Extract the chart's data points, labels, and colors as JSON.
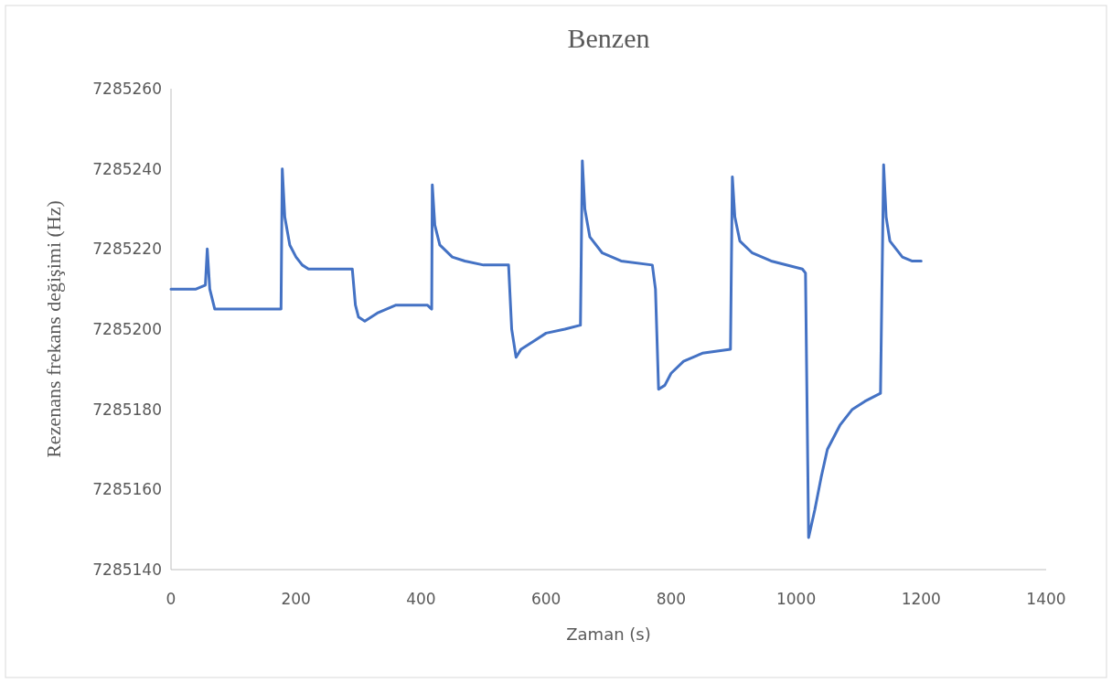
{
  "chart_data": {
    "type": "line",
    "title": "Benzen",
    "xlabel": "Zaman (s)",
    "ylabel": "Rezenans frekans değişimi (Hz)",
    "xlim": [
      0,
      1400
    ],
    "xticks": [
      0,
      200,
      400,
      600,
      800,
      1000,
      1200,
      1400
    ],
    "ylim": [
      7285140,
      7285260
    ],
    "yticks": [
      7285140,
      7285160,
      7285180,
      7285200,
      7285220,
      7285240,
      7285260
    ],
    "grid": false,
    "marker": "none",
    "line_style": "solid",
    "series": [
      {
        "color": "#4472c4",
        "x": [
          0,
          20,
          40,
          55,
          58,
          62,
          70,
          100,
          150,
          176,
          178,
          182,
          190,
          200,
          210,
          220,
          290,
          295,
          300,
          310,
          330,
          360,
          380,
          410,
          417,
          418,
          422,
          430,
          450,
          470,
          500,
          540,
          545,
          552,
          560,
          580,
          600,
          630,
          655,
          658,
          662,
          670,
          690,
          720,
          770,
          775,
          780,
          790,
          800,
          820,
          850,
          895,
          898,
          902,
          910,
          930,
          960,
          1010,
          1015,
          1020,
          1030,
          1040,
          1050,
          1070,
          1090,
          1110,
          1135,
          1140,
          1144,
          1150,
          1170,
          1185,
          1200
        ],
        "values": [
          7285210,
          7285210,
          7285210,
          7285211,
          7285220,
          7285210,
          7285205,
          7285205,
          7285205,
          7285205,
          7285240,
          7285228,
          7285221,
          7285218,
          7285216,
          7285215,
          7285215,
          7285206,
          7285203,
          7285202,
          7285204,
          7285206,
          7285206,
          7285206,
          7285205,
          7285236,
          7285226,
          7285221,
          7285218,
          7285217,
          7285216,
          7285216,
          7285200,
          7285193,
          7285195,
          7285197,
          7285199,
          7285200,
          7285201,
          7285242,
          7285230,
          7285223,
          7285219,
          7285217,
          7285216,
          7285210,
          7285185,
          7285186,
          7285189,
          7285192,
          7285194,
          7285195,
          7285238,
          7285228,
          7285222,
          7285219,
          7285217,
          7285215,
          7285214,
          7285148,
          7285155,
          7285163,
          7285170,
          7285176,
          7285180,
          7285182,
          7285184,
          7285241,
          7285228,
          7285222,
          7285218,
          7285217,
          7285217
        ]
      }
    ]
  }
}
